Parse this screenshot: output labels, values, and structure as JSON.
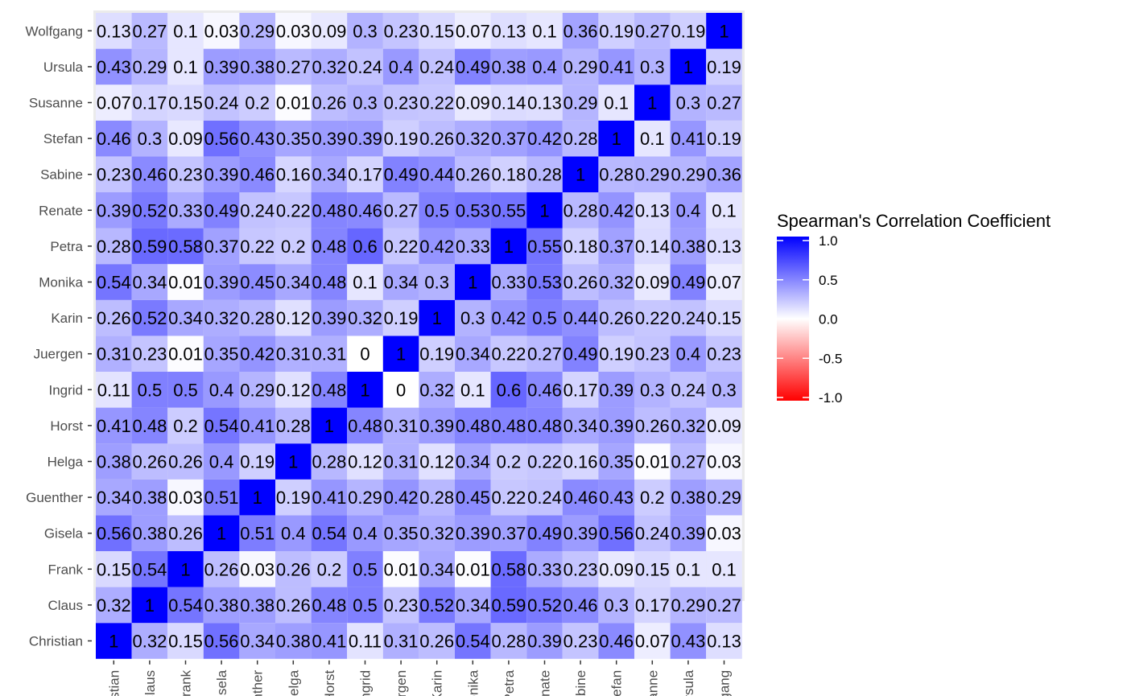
{
  "chart_data": {
    "type": "heatmap",
    "title": "",
    "xlabel": "",
    "ylabel": "",
    "labels": [
      "Christian",
      "Claus",
      "Frank",
      "Gisela",
      "Guenther",
      "Helga",
      "Horst",
      "Ingrid",
      "Juergen",
      "Karin",
      "Monika",
      "Petra",
      "Renate",
      "Sabine",
      "Stefan",
      "Susanne",
      "Ursula",
      "Wolfgang"
    ],
    "matrix": [
      [
        "1",
        "0.32",
        "0.15",
        "0.56",
        "0.34",
        "0.38",
        "0.41",
        "0.11",
        "0.31",
        "0.26",
        "0.54",
        "0.28",
        "0.39",
        "0.23",
        "0.46",
        "0.07",
        "0.43",
        "0.13"
      ],
      [
        "0.32",
        "1",
        "0.54",
        "0.38",
        "0.38",
        "0.26",
        "0.48",
        "0.5",
        "0.23",
        "0.52",
        "0.34",
        "0.59",
        "0.52",
        "0.46",
        "0.3",
        "0.17",
        "0.29",
        "0.27"
      ],
      [
        "0.15",
        "0.54",
        "1",
        "0.26",
        "0.03",
        "0.26",
        "0.2",
        "0.5",
        "0.01",
        "0.34",
        "0.01",
        "0.58",
        "0.33",
        "0.23",
        "0.09",
        "0.15",
        "0.1",
        "0.1"
      ],
      [
        "0.56",
        "0.38",
        "0.26",
        "1",
        "0.51",
        "0.4",
        "0.54",
        "0.4",
        "0.35",
        "0.32",
        "0.39",
        "0.37",
        "0.49",
        "0.39",
        "0.56",
        "0.24",
        "0.39",
        "0.03"
      ],
      [
        "0.34",
        "0.38",
        "0.03",
        "0.51",
        "1",
        "0.19",
        "0.41",
        "0.29",
        "0.42",
        "0.28",
        "0.45",
        "0.22",
        "0.24",
        "0.46",
        "0.43",
        "0.2",
        "0.38",
        "0.29"
      ],
      [
        "0.38",
        "0.26",
        "0.26",
        "0.4",
        "0.19",
        "1",
        "0.28",
        "0.12",
        "0.31",
        "0.12",
        "0.34",
        "0.2",
        "0.22",
        "0.16",
        "0.35",
        "0.01",
        "0.27",
        "0.03"
      ],
      [
        "0.41",
        "0.48",
        "0.2",
        "0.54",
        "0.41",
        "0.28",
        "1",
        "0.48",
        "0.31",
        "0.39",
        "0.48",
        "0.48",
        "0.48",
        "0.34",
        "0.39",
        "0.26",
        "0.32",
        "0.09"
      ],
      [
        "0.11",
        "0.5",
        "0.5",
        "0.4",
        "0.29",
        "0.12",
        "0.48",
        "1",
        "0",
        "0.32",
        "0.1",
        "0.6",
        "0.46",
        "0.17",
        "0.39",
        "0.3",
        "0.24",
        "0.3"
      ],
      [
        "0.31",
        "0.23",
        "0.01",
        "0.35",
        "0.42",
        "0.31",
        "0.31",
        "0",
        "1",
        "0.19",
        "0.34",
        "0.22",
        "0.27",
        "0.49",
        "0.19",
        "0.23",
        "0.4",
        "0.23"
      ],
      [
        "0.26",
        "0.52",
        "0.34",
        "0.32",
        "0.28",
        "0.12",
        "0.39",
        "0.32",
        "0.19",
        "1",
        "0.3",
        "0.42",
        "0.5",
        "0.44",
        "0.26",
        "0.22",
        "0.24",
        "0.15"
      ],
      [
        "0.54",
        "0.34",
        "0.01",
        "0.39",
        "0.45",
        "0.34",
        "0.48",
        "0.1",
        "0.34",
        "0.3",
        "1",
        "0.33",
        "0.53",
        "0.26",
        "0.32",
        "0.09",
        "0.49",
        "0.07"
      ],
      [
        "0.28",
        "0.59",
        "0.58",
        "0.37",
        "0.22",
        "0.2",
        "0.48",
        "0.6",
        "0.22",
        "0.42",
        "0.33",
        "1",
        "0.55",
        "0.18",
        "0.37",
        "0.14",
        "0.38",
        "0.13"
      ],
      [
        "0.39",
        "0.52",
        "0.33",
        "0.49",
        "0.24",
        "0.22",
        "0.48",
        "0.46",
        "0.27",
        "0.5",
        "0.53",
        "0.55",
        "1",
        "0.28",
        "0.42",
        "0.13",
        "0.4",
        "0.1"
      ],
      [
        "0.23",
        "0.46",
        "0.23",
        "0.39",
        "0.46",
        "0.16",
        "0.34",
        "0.17",
        "0.49",
        "0.44",
        "0.26",
        "0.18",
        "0.28",
        "1",
        "0.28",
        "0.29",
        "0.29",
        "0.36"
      ],
      [
        "0.46",
        "0.3",
        "0.09",
        "0.56",
        "0.43",
        "0.35",
        "0.39",
        "0.39",
        "0.19",
        "0.26",
        "0.32",
        "0.37",
        "0.42",
        "0.28",
        "1",
        "0.1",
        "0.41",
        "0.19"
      ],
      [
        "0.07",
        "0.17",
        "0.15",
        "0.24",
        "0.2",
        "0.01",
        "0.26",
        "0.3",
        "0.23",
        "0.22",
        "0.09",
        "0.14",
        "0.13",
        "0.29",
        "0.1",
        "1",
        "0.3",
        "0.27"
      ],
      [
        "0.43",
        "0.29",
        "0.1",
        "0.39",
        "0.38",
        "0.27",
        "0.32",
        "0.24",
        "0.4",
        "0.24",
        "0.49",
        "0.38",
        "0.4",
        "0.29",
        "0.41",
        "0.3",
        "1",
        "0.19"
      ],
      [
        "0.13",
        "0.27",
        "0.1",
        "0.03",
        "0.29",
        "0.03",
        "0.09",
        "0.3",
        "0.23",
        "0.15",
        "0.07",
        "0.13",
        "0.1",
        "0.36",
        "0.19",
        "0.27",
        "0.19",
        "1"
      ]
    ],
    "legend": {
      "title": "Spearman's Correlation Coefficient",
      "ticks": [
        "1.0",
        "0.5",
        "0.0",
        "-0.5",
        "-1.0"
      ],
      "tick_values": [
        1,
        0.5,
        0,
        -0.5,
        -1
      ],
      "range": [
        -1,
        1
      ],
      "placement": "right",
      "colors": {
        "low": "#ff0000",
        "mid": "#ffffff",
        "high": "#0000ff"
      }
    },
    "panel_background": "#ebebeb",
    "grid": true
  }
}
